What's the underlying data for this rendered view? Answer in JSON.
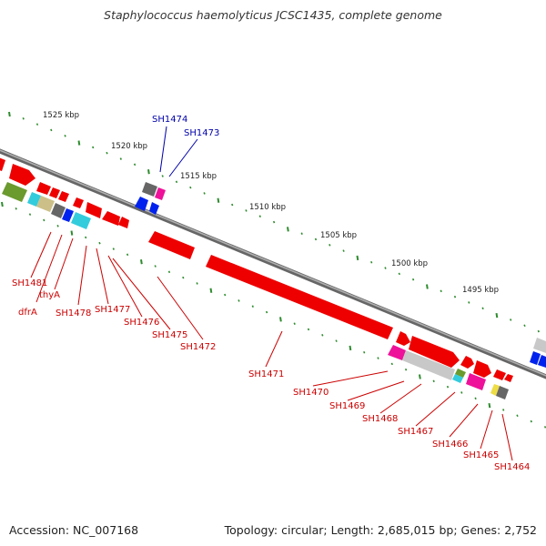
{
  "title": "Staphylococcus haemolyticus JCSC1435, complete genome",
  "footer": {
    "accession": "Accession: NC_007168",
    "topology": "Topology: circular; Length: 2,685,015 bp; Genes: 2,752"
  },
  "colors": {
    "backbone": "#888888",
    "ruler_dots": "#2e8b2e",
    "top_label": "#0000aa",
    "bottom_label": "#cc0000",
    "red_gene": "#ee0000",
    "blue_gene": "#0022ee",
    "magenta_gene": "#ee1199",
    "gray_gene": "#666666",
    "light_gray_gene": "#c8c8c8",
    "olive_gene": "#6b9a2e",
    "cyan_gene": "#33ccdd",
    "khaki_gene": "#ccc088",
    "yellow_gene": "#eedd44"
  },
  "ruler": [
    {
      "label": "1525 kbp"
    },
    {
      "label": "1520 kbp"
    },
    {
      "label": "1515 kbp"
    },
    {
      "label": "1510 kbp"
    },
    {
      "label": "1505 kbp"
    },
    {
      "label": "1500 kbp"
    },
    {
      "label": "1495 kbp"
    }
  ],
  "top_genes": [
    {
      "label": "SH1474"
    },
    {
      "label": "SH1473"
    }
  ],
  "bottom_genes": [
    {
      "label": "SH1481"
    },
    {
      "label": "thyA"
    },
    {
      "label": "dfrA"
    },
    {
      "label": "SH1478"
    },
    {
      "label": "SH1477"
    },
    {
      "label": "SH1476"
    },
    {
      "label": "SH1475"
    },
    {
      "label": "SH1472"
    },
    {
      "label": "SH1471"
    },
    {
      "label": "SH1470"
    },
    {
      "label": "SH1469"
    },
    {
      "label": "SH1468"
    },
    {
      "label": "SH1467"
    },
    {
      "label": "SH1466"
    },
    {
      "label": "SH1465"
    },
    {
      "label": "SH1464"
    }
  ]
}
